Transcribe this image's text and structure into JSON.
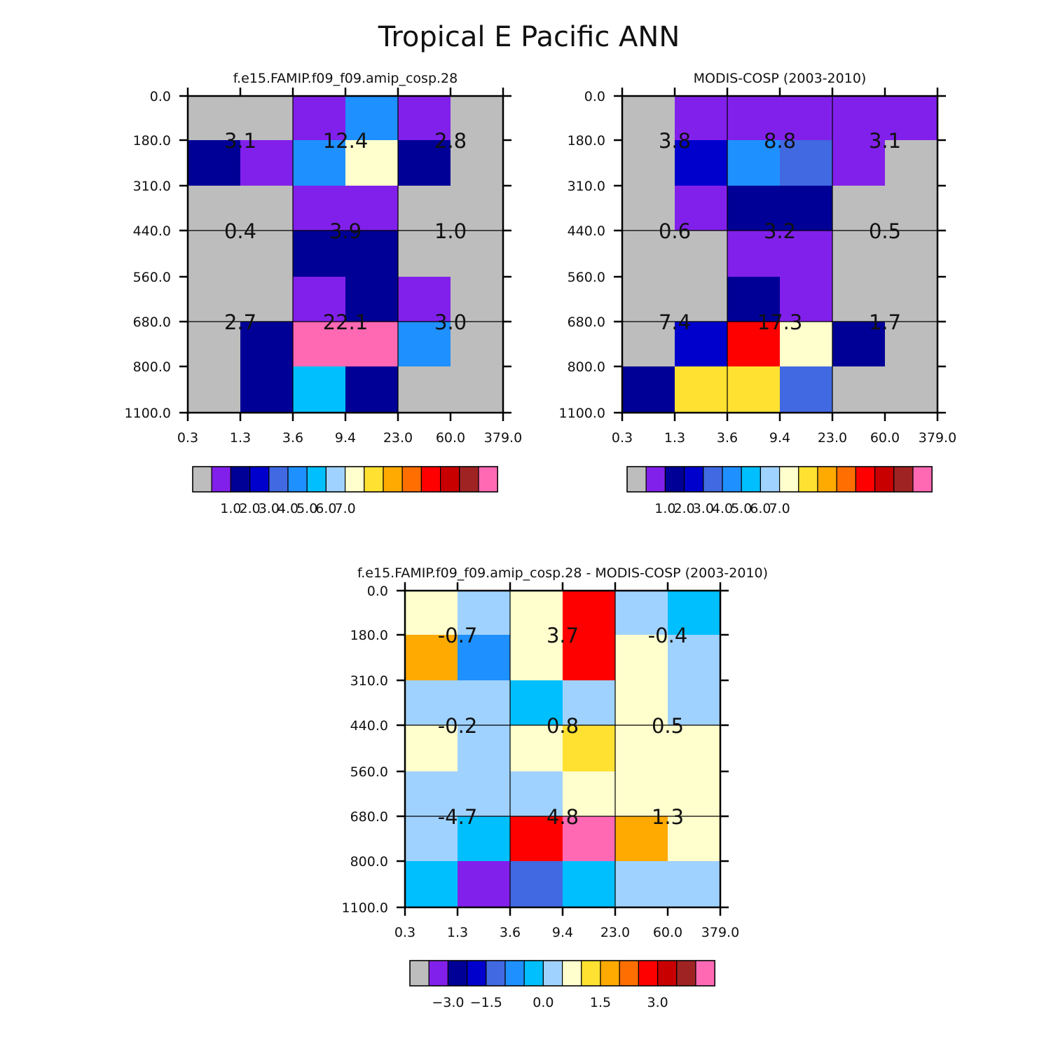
{
  "figure_title": "Tropical E Pacific ANN",
  "palette": [
    "#bdbdbd",
    "#8220eb",
    "#000096",
    "#0000cd",
    "#4169e1",
    "#1e90ff",
    "#00bfff",
    "#a0d2ff",
    "#ffffcd",
    "#ffe132",
    "#ffaa00",
    "#ff6e00",
    "#ff0000",
    "#c80000",
    "#a02323",
    "#ff69b4"
  ],
  "chart_data": [
    {
      "type": "heatmap",
      "title": "f.e15.FAMIP.f09_f09.amip_cosp.28",
      "x_tick_labels": [
        "0.3",
        "1.3",
        "3.6",
        "9.4",
        "23.0",
        "60.0",
        "379.0"
      ],
      "y_tick_labels": [
        "0.0",
        "180.0",
        "310.0",
        "440.0",
        "560.0",
        "680.0",
        "800.0",
        "1100.0"
      ],
      "cells_color_index": [
        [
          0,
          0,
          1,
          5,
          1,
          0
        ],
        [
          2,
          1,
          5,
          8,
          2,
          0
        ],
        [
          0,
          0,
          1,
          1,
          0,
          0
        ],
        [
          0,
          0,
          2,
          2,
          0,
          0
        ],
        [
          0,
          0,
          1,
          2,
          1,
          0
        ],
        [
          0,
          2,
          15,
          15,
          5,
          0
        ],
        [
          0,
          2,
          6,
          2,
          0,
          0
        ]
      ],
      "block_sums": [
        [
          "3.1",
          "12.4",
          "2.8"
        ],
        [
          "0.4",
          "3.9",
          "1.0"
        ],
        [
          "2.7",
          "22.1",
          "3.0"
        ]
      ],
      "colorbar_labels": [
        "1.0",
        "2.0",
        "3.0",
        "4.0",
        "5.0",
        "6.0",
        "7.0"
      ],
      "colorbar_label_slots": [
        2,
        3,
        4,
        5,
        6,
        7,
        8
      ]
    },
    {
      "type": "heatmap",
      "title": "MODIS-COSP (2003-2010)",
      "x_tick_labels": [
        "0.3",
        "1.3",
        "3.6",
        "9.4",
        "23.0",
        "60.0",
        "379.0"
      ],
      "y_tick_labels": [
        "0.0",
        "180.0",
        "310.0",
        "440.0",
        "560.0",
        "680.0",
        "800.0",
        "1100.0"
      ],
      "cells_color_index": [
        [
          0,
          1,
          1,
          1,
          1,
          1
        ],
        [
          0,
          3,
          5,
          4,
          1,
          0
        ],
        [
          0,
          1,
          2,
          2,
          0,
          0
        ],
        [
          0,
          0,
          1,
          1,
          0,
          0
        ],
        [
          0,
          0,
          2,
          1,
          0,
          0
        ],
        [
          0,
          3,
          12,
          8,
          2,
          0
        ],
        [
          2,
          9,
          9,
          4,
          0,
          0
        ]
      ],
      "block_sums": [
        [
          "3.8",
          "8.8",
          "3.1"
        ],
        [
          "0.6",
          "3.2",
          "0.5"
        ],
        [
          "7.4",
          "17.3",
          "1.7"
        ]
      ],
      "colorbar_labels": [
        "1.0",
        "2.0",
        "3.0",
        "4.0",
        "5.0",
        "6.0",
        "7.0"
      ],
      "colorbar_label_slots": [
        2,
        3,
        4,
        5,
        6,
        7,
        8
      ]
    },
    {
      "type": "heatmap",
      "title": "f.e15.FAMIP.f09_f09.amip_cosp.28 - MODIS-COSP (2003-2010)",
      "x_tick_labels": [
        "0.3",
        "1.3",
        "3.6",
        "9.4",
        "23.0",
        "60.0",
        "379.0"
      ],
      "y_tick_labels": [
        "0.0",
        "180.0",
        "310.0",
        "440.0",
        "560.0",
        "680.0",
        "800.0",
        "1100.0"
      ],
      "cells_color_index": [
        [
          8,
          7,
          8,
          12,
          7,
          6
        ],
        [
          10,
          5,
          8,
          12,
          8,
          7
        ],
        [
          7,
          7,
          6,
          7,
          8,
          7
        ],
        [
          8,
          7,
          8,
          9,
          8,
          8
        ],
        [
          7,
          7,
          7,
          8,
          8,
          8
        ],
        [
          7,
          6,
          12,
          15,
          10,
          8
        ],
        [
          6,
          1,
          4,
          6,
          7,
          7
        ]
      ],
      "block_sums": [
        [
          "-0.7",
          "3.7",
          "-0.4"
        ],
        [
          "-0.2",
          "0.8",
          "0.5"
        ],
        [
          "-4.7",
          "4.8",
          "1.3"
        ]
      ],
      "colorbar_labels": [
        "-3.0",
        "-1.5",
        "0.0",
        "1.5",
        "3.0"
      ],
      "colorbar_label_slots": [
        2,
        4,
        7,
        10,
        13
      ]
    }
  ]
}
